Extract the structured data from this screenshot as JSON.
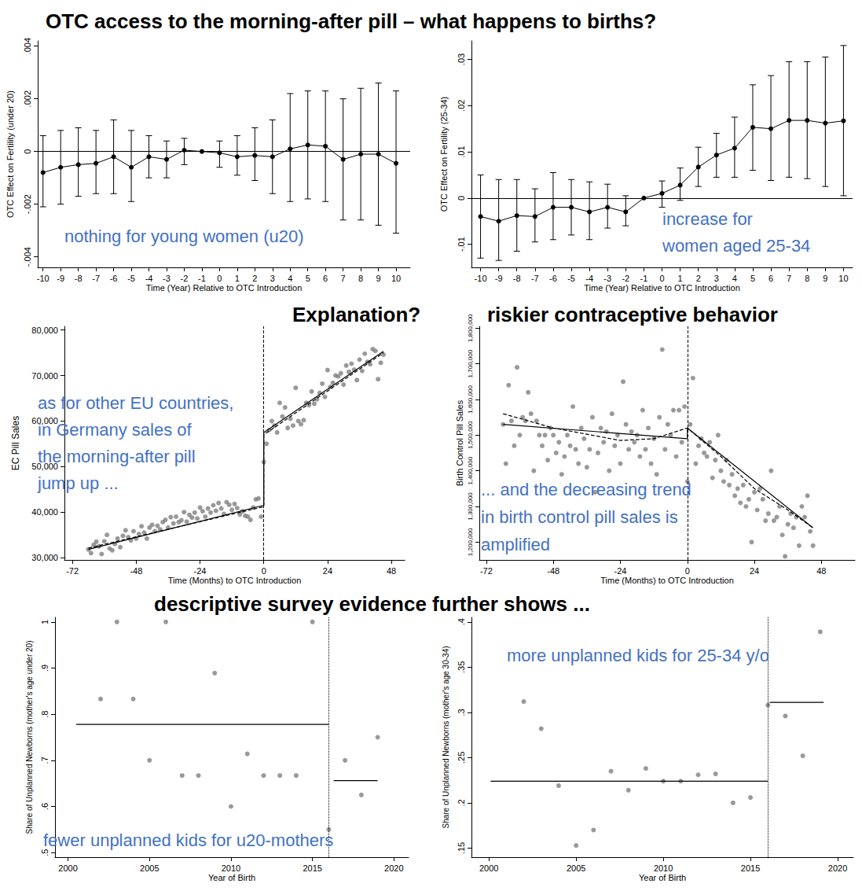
{
  "title": "OTC access to the morning-after pill – what happens to births?",
  "headings": [
    "Explanation?",
    "riskier contraceptive behavior",
    "descriptive survey evidence further shows ..."
  ],
  "chart_data": [
    {
      "type": "line",
      "x_label": "Time (Year) Relative to OTC Introduction",
      "y_label": "OTC Effect on Fertility (under 20)",
      "x": [
        -10,
        -9,
        -8,
        -7,
        -6,
        -5,
        -4,
        -3,
        -2,
        -1,
        0,
        1,
        2,
        3,
        4,
        5,
        6,
        7,
        8,
        9,
        10
      ],
      "values": [
        -0.0008,
        -0.0006,
        -0.0005,
        -0.00045,
        -0.0002,
        -0.0006,
        -0.0002,
        -0.0003,
        5e-05,
        0,
        -5e-05,
        -0.0002,
        -0.00015,
        -0.0002,
        0.0001,
        0.00025,
        0.0002,
        -0.0003,
        -0.0001,
        -0.0001,
        -0.00045
      ],
      "error_bars": {
        "low": [
          -0.0021,
          -0.002,
          -0.0017,
          -0.0016,
          -0.0016,
          -0.0019,
          -0.001,
          -0.001,
          -0.0005,
          null,
          -0.0006,
          -0.0009,
          -0.0011,
          -0.0016,
          -0.0019,
          -0.0018,
          -0.0019,
          -0.0026,
          -0.0026,
          -0.0028,
          -0.0031
        ],
        "high": [
          0.0006,
          0.0008,
          0.0009,
          0.0008,
          0.0012,
          0.0008,
          0.0006,
          0.0004,
          0.0005,
          null,
          0.0004,
          0.0006,
          0.0009,
          0.0012,
          0.0022,
          0.0023,
          0.0023,
          0.002,
          0.0024,
          0.0026,
          0.0023
        ]
      },
      "color": "#000000",
      "marker": "circle",
      "hline": 0,
      "xlim": [
        -10.3,
        10.8
      ],
      "ylim": [
        -0.0044,
        0.0042
      ],
      "xticks": [
        -10,
        -9,
        -8,
        -7,
        -6,
        -5,
        -4,
        -3,
        -2,
        -1,
        0,
        1,
        2,
        3,
        4,
        5,
        6,
        7,
        8,
        9,
        10
      ],
      "yticks": [
        {
          "value": -0.004,
          "label": "-.004"
        },
        {
          "value": -0.002,
          "label": "-.002"
        },
        0,
        {
          "value": 0.002,
          "label": ".002"
        },
        {
          "value": 0.004,
          "label": ".004"
        }
      ],
      "grid": false,
      "annotation": {
        "text": [
          "nothing for young women (u20)"
        ],
        "color": "#4472C4"
      }
    },
    {
      "type": "line",
      "x_label": "Time (Year) Relative to OTC Introduction",
      "y_label": "OTC Effect on Fertility (25-34)",
      "x": [
        -10,
        -9,
        -8,
        -7,
        -6,
        -5,
        -4,
        -3,
        -2,
        -1,
        0,
        1,
        2,
        3,
        4,
        5,
        6,
        7,
        8,
        9,
        10
      ],
      "values": [
        -0.004,
        -0.005,
        -0.0038,
        -0.004,
        -0.002,
        -0.002,
        -0.003,
        -0.002,
        -0.003,
        0,
        0.001,
        0.0028,
        0.0067,
        0.0093,
        0.0108,
        0.0153,
        0.015,
        0.0168,
        0.0168,
        0.0162,
        0.0167
      ],
      "error_bars": {
        "low": [
          -0.013,
          -0.0135,
          -0.0115,
          -0.0095,
          -0.009,
          -0.008,
          -0.009,
          -0.0065,
          -0.006,
          null,
          -0.002,
          -0.0005,
          0.0025,
          0.0045,
          0.0045,
          0.006,
          0.0038,
          0.0045,
          0.0042,
          0.0025,
          0.0005
        ],
        "high": [
          0.005,
          0.004,
          0.004,
          0.002,
          0.0055,
          0.004,
          0.0035,
          0.003,
          0.0005,
          null,
          0.0037,
          0.0065,
          0.011,
          0.014,
          0.0175,
          0.0245,
          0.0265,
          0.0295,
          0.0295,
          0.0305,
          0.033
        ]
      },
      "color": "#000000",
      "marker": "circle",
      "hline": 0,
      "xlim": [
        -10.5,
        10.5
      ],
      "ylim": [
        -0.015,
        0.034
      ],
      "xticks": [
        -10,
        -9,
        -8,
        -7,
        -6,
        -5,
        -4,
        -3,
        -2,
        -1,
        0,
        1,
        2,
        3,
        4,
        5,
        6,
        7,
        8,
        9,
        10
      ],
      "yticks": [
        {
          "value": -0.01,
          "label": "-.01"
        },
        0,
        {
          "value": 0.01,
          "label": ".01"
        },
        {
          "value": 0.02,
          "label": ".02"
        },
        {
          "value": 0.03,
          "label": ".03"
        }
      ],
      "grid": false,
      "annotation": {
        "text": [
          "increase for",
          "women aged 25-34"
        ],
        "color": "#4472C4"
      }
    },
    {
      "type": "scatter",
      "x_label": "Time (Months) to OTC Introduction",
      "y_label": "EC Pill Sales",
      "x": [
        -66,
        -65,
        -64,
        -63,
        -62,
        -61,
        -60,
        -59,
        -58,
        -57,
        -56,
        -55,
        -54,
        -53,
        -52,
        -51,
        -50,
        -49,
        -48,
        -47,
        -46,
        -45,
        -44,
        -43,
        -42,
        -41,
        -40,
        -39,
        -38,
        -37,
        -36,
        -35,
        -34,
        -33,
        -32,
        -31,
        -30,
        -29,
        -28,
        -27,
        -26,
        -25,
        -24,
        -23,
        -22,
        -21,
        -20,
        -19,
        -18,
        -17,
        -16,
        -15,
        -14,
        -13,
        -12,
        -11,
        -10,
        -9,
        -8,
        -7,
        -6,
        -5,
        -4,
        -3,
        -2,
        -1,
        0,
        1,
        2,
        3,
        4,
        5,
        6,
        7,
        8,
        9,
        10,
        11,
        12,
        13,
        14,
        15,
        16,
        17,
        18,
        19,
        20,
        21,
        22,
        23,
        24,
        25,
        26,
        27,
        28,
        29,
        30,
        31,
        32,
        33,
        34,
        35,
        36,
        37,
        38,
        39,
        40,
        41,
        42,
        43,
        44,
        45
      ],
      "values": [
        31800,
        31000,
        32800,
        33500,
        32500,
        30800,
        33600,
        35000,
        32000,
        31600,
        33000,
        34200,
        32300,
        34800,
        36000,
        34500,
        33800,
        35800,
        34200,
        35200,
        36900,
        35500,
        34200,
        36600,
        37200,
        35800,
        37000,
        36200,
        37800,
        38300,
        36600,
        38900,
        37500,
        39000,
        37800,
        38200,
        40000,
        37900,
        39400,
        38800,
        39900,
        38600,
        41000,
        40200,
        39000,
        40800,
        39900,
        41500,
        40300,
        42000,
        40800,
        39600,
        42200,
        41600,
        40500,
        41800,
        40900,
        39500,
        40200,
        39200,
        39000,
        38300,
        41000,
        42800,
        43000,
        39000,
        51000,
        55000,
        58000,
        60000,
        59000,
        57500,
        64000,
        61000,
        63000,
        58500,
        60500,
        59000,
        67300,
        60000,
        59300,
        60200,
        64000,
        63500,
        66500,
        63800,
        64800,
        66200,
        68200,
        65300,
        71200,
        67500,
        68400,
        70000,
        69800,
        70500,
        68000,
        72200,
        70800,
        72600,
        71300,
        69000,
        73500,
        71000,
        74800,
        73000,
        72500,
        75800,
        75400,
        69200,
        72800,
        74600
      ],
      "color": "#808080",
      "marker": "circle",
      "lines": [
        {
          "x": [
            -66,
            0,
            0,
            45
          ],
          "values": [
            31800,
            41500,
            57500,
            75300
          ],
          "color": "#000000",
          "line_style": "solid"
        },
        {
          "x": [
            -66,
            0,
            0,
            45
          ],
          "values": [
            32100,
            41200,
            57000,
            75000
          ],
          "color": "#000000",
          "line_style": "dashed"
        }
      ],
      "vline": {
        "value": 0,
        "line_style": "dashed"
      },
      "xlim": [
        -75,
        53
      ],
      "ylim": [
        29500,
        80800
      ],
      "xticks": [
        -72,
        -48,
        -24,
        0,
        24,
        48
      ],
      "yticks": [
        {
          "value": 30000,
          "label": "30,000"
        },
        {
          "value": 40000,
          "label": "40,000"
        },
        {
          "value": 50000,
          "label": "50,000"
        },
        {
          "value": 60000,
          "label": "60,000"
        },
        {
          "value": 70000,
          "label": "70,000"
        },
        {
          "value": 80000,
          "label": "80,000"
        }
      ],
      "grid": false,
      "annotation": {
        "text": [
          "as for other EU countries,",
          "in Germany sales of",
          "the morning-after pill",
          "jump up ..."
        ],
        "color": "#4472C4"
      }
    },
    {
      "type": "scatter",
      "x_label": "Time (Months) to OTC Introduction",
      "y_label": "Birth Control Pill Sales",
      "x": [
        -66,
        -65,
        -64,
        -63,
        -62,
        -61,
        -60,
        -59,
        -58,
        -57,
        -56,
        -55,
        -54,
        -53,
        -52,
        -51,
        -50,
        -49,
        -48,
        -47,
        -46,
        -45,
        -44,
        -43,
        -42,
        -41,
        -40,
        -39,
        -38,
        -37,
        -36,
        -35,
        -34,
        -33,
        -32,
        -31,
        -30,
        -29,
        -28,
        -27,
        -26,
        -25,
        -24,
        -23,
        -22,
        -21,
        -20,
        -19,
        -18,
        -17,
        -16,
        -15,
        -14,
        -13,
        -12,
        -11,
        -10,
        -9,
        -8,
        -7,
        -6,
        -5,
        -4,
        -3,
        -2,
        -1,
        0,
        1,
        2,
        3,
        4,
        5,
        6,
        7,
        8,
        9,
        10,
        11,
        12,
        13,
        14,
        15,
        16,
        17,
        18,
        19,
        20,
        21,
        22,
        23,
        24,
        25,
        26,
        27,
        28,
        29,
        30,
        31,
        32,
        33,
        34,
        35,
        36,
        37,
        38,
        39,
        40,
        41,
        42,
        43,
        44,
        45
      ],
      "values": [
        1530000,
        1420000,
        1640000,
        1540000,
        1470000,
        1690000,
        1500000,
        1550000,
        1540000,
        1620000,
        1560000,
        1400000,
        1540000,
        1500000,
        1470000,
        1500000,
        1430000,
        1520000,
        1500000,
        1450000,
        1480000,
        1390000,
        1440000,
        1500000,
        1470000,
        1580000,
        1460000,
        1420000,
        1520000,
        1490000,
        1410000,
        1460000,
        1550000,
        1340000,
        1450000,
        1520000,
        1480000,
        1510000,
        1400000,
        1560000,
        1470000,
        1500000,
        1420000,
        1650000,
        1530000,
        1460000,
        1510000,
        1480000,
        1500000,
        1440000,
        1570000,
        1460000,
        1520000,
        1420000,
        1490000,
        1390000,
        1550000,
        1740000,
        1460000,
        1530000,
        1500000,
        1570000,
        1440000,
        1570000,
        1480000,
        1580000,
        1370000,
        1530000,
        1660000,
        1420000,
        1470000,
        1490000,
        1450000,
        1440000,
        1480000,
        1380000,
        1430000,
        1500000,
        1400000,
        1370000,
        1430000,
        1360000,
        1390000,
        1330000,
        1350000,
        1310000,
        1360000,
        1300000,
        1320000,
        1200000,
        1340000,
        1290000,
        1350000,
        1320000,
        1260000,
        1280000,
        1400000,
        1260000,
        1270000,
        1300000,
        1220000,
        1160000,
        1250000,
        1280000,
        1240000,
        1270000,
        1190000,
        1300000,
        1270000,
        1330000,
        1230000,
        1190000
      ],
      "color": "#808080",
      "marker": "circle",
      "lines": [
        {
          "x": [
            -66,
            0,
            0,
            45
          ],
          "values": [
            1530000,
            1490000,
            1520000,
            1240000
          ],
          "color": "#000000",
          "line_style": "solid"
        },
        {
          "x": [
            -66,
            -48,
            -24,
            -12,
            0,
            0,
            12,
            24,
            36,
            45
          ],
          "values": [
            1560000,
            1520000,
            1485000,
            1490000,
            1520000,
            1520000,
            1440000,
            1350000,
            1290000,
            1240000
          ],
          "color": "#000000",
          "line_style": "dashed"
        }
      ],
      "vline": {
        "value": 0,
        "line_style": "dashed"
      },
      "xlim": [
        -74.5,
        60
      ],
      "ylim": [
        1150000,
        1805000
      ],
      "xticks": [
        -72,
        -48,
        -24,
        0,
        24,
        48
      ],
      "yticks": [
        {
          "value": 1200000,
          "label": "1,200,000"
        },
        {
          "value": 1300000,
          "label": "1,300,000"
        },
        {
          "value": 1400000,
          "label": "1,400,000"
        },
        {
          "value": 1500000,
          "label": "1,500,000"
        },
        {
          "value": 1600000,
          "label": "1,600,000"
        },
        {
          "value": 1700000,
          "label": "1,700,000"
        },
        {
          "value": 1800000,
          "label": "1,800,000"
        }
      ],
      "grid": false,
      "annotation": {
        "text": [
          "... and the decreasing trend",
          "in birth control pill sales is",
          "amplified"
        ],
        "color": "#4472C4"
      }
    },
    {
      "type": "scatter",
      "x_label": "Year of Birth",
      "y_label": "Share of Unplanned Newborns (mother's age under 20)",
      "x": [
        2002,
        2003,
        2004,
        2005,
        2006,
        2007,
        2008,
        2009,
        2010,
        2011,
        2012,
        2013,
        2014,
        2015,
        2016,
        2017,
        2018,
        2019
      ],
      "values": [
        0.833,
        1.0,
        0.833,
        0.7,
        1.0,
        0.667,
        0.667,
        0.889,
        0.6,
        0.714,
        0.667,
        0.667,
        0.667,
        1.0,
        0.55,
        0.7,
        0.625,
        0.75
      ],
      "color": "#808080",
      "marker": "circle",
      "lines": [
        {
          "x": [
            2000.5,
            2016
          ],
          "values": [
            0.778,
            0.778
          ],
          "color": "#000000",
          "line_style": "solid"
        },
        {
          "x": [
            2016.3,
            2019
          ],
          "values": [
            0.656,
            0.656
          ],
          "color": "#000000",
          "line_style": "solid"
        }
      ],
      "vline": {
        "value": 2016,
        "line_style": "dotted"
      },
      "xlim": [
        1999.2,
        2020.9
      ],
      "ylim": [
        0.49,
        1.01
      ],
      "xticks": [
        2000,
        2005,
        2010,
        2015,
        2020
      ],
      "yticks": [
        {
          "value": 0.5,
          "label": ".5"
        },
        {
          "value": 0.6,
          "label": ".6"
        },
        {
          "value": 0.7,
          "label": ".7"
        },
        {
          "value": 0.8,
          "label": ".8"
        },
        {
          "value": 0.9,
          "label": ".9"
        },
        1
      ],
      "grid": false,
      "annotation": {
        "text": [
          "fewer unplanned kids for u20-mothers"
        ],
        "color": "#4472C4"
      }
    },
    {
      "type": "scatter",
      "x_label": "Year of Birth",
      "y_label": "Share of Unplanned Newborns (mother's age 30-34)",
      "x": [
        2002,
        2003,
        2004,
        2005,
        2006,
        2007,
        2008,
        2009,
        2010,
        2011,
        2012,
        2013,
        2014,
        2015,
        2016,
        2017,
        2018,
        2019
      ],
      "values": [
        0.312,
        0.282,
        0.219,
        0.153,
        0.17,
        0.235,
        0.214,
        0.238,
        0.224,
        0.224,
        0.231,
        0.232,
        0.2,
        0.206,
        0.308,
        0.296,
        0.252,
        0.389
      ],
      "color": "#808080",
      "marker": "circle",
      "lines": [
        {
          "x": [
            2000.1,
            2016
          ],
          "values": [
            0.224,
            0.224
          ],
          "color": "#000000",
          "line_style": "solid"
        },
        {
          "x": [
            2016.1,
            2019.2
          ],
          "values": [
            0.311,
            0.311
          ],
          "color": "#000000",
          "line_style": "solid"
        }
      ],
      "vline": {
        "value": 2016,
        "line_style": "dotted"
      },
      "xlim": [
        1999,
        2020.9
      ],
      "ylim": [
        0.14,
        0.405
      ],
      "xticks": [
        2000,
        2005,
        2010,
        2015,
        2020
      ],
      "yticks": [
        {
          "value": 0.15,
          "label": ".15"
        },
        {
          "value": 0.2,
          "label": ".2"
        },
        {
          "value": 0.25,
          "label": ".25"
        },
        {
          "value": 0.3,
          "label": ".3"
        },
        {
          "value": 0.35,
          "label": ".35"
        },
        {
          "value": 0.4,
          "label": ".4"
        }
      ],
      "grid": false,
      "annotation": {
        "text": [
          "more unplanned kids for 25-34 y/o"
        ],
        "color": "#4472C4"
      }
    }
  ]
}
